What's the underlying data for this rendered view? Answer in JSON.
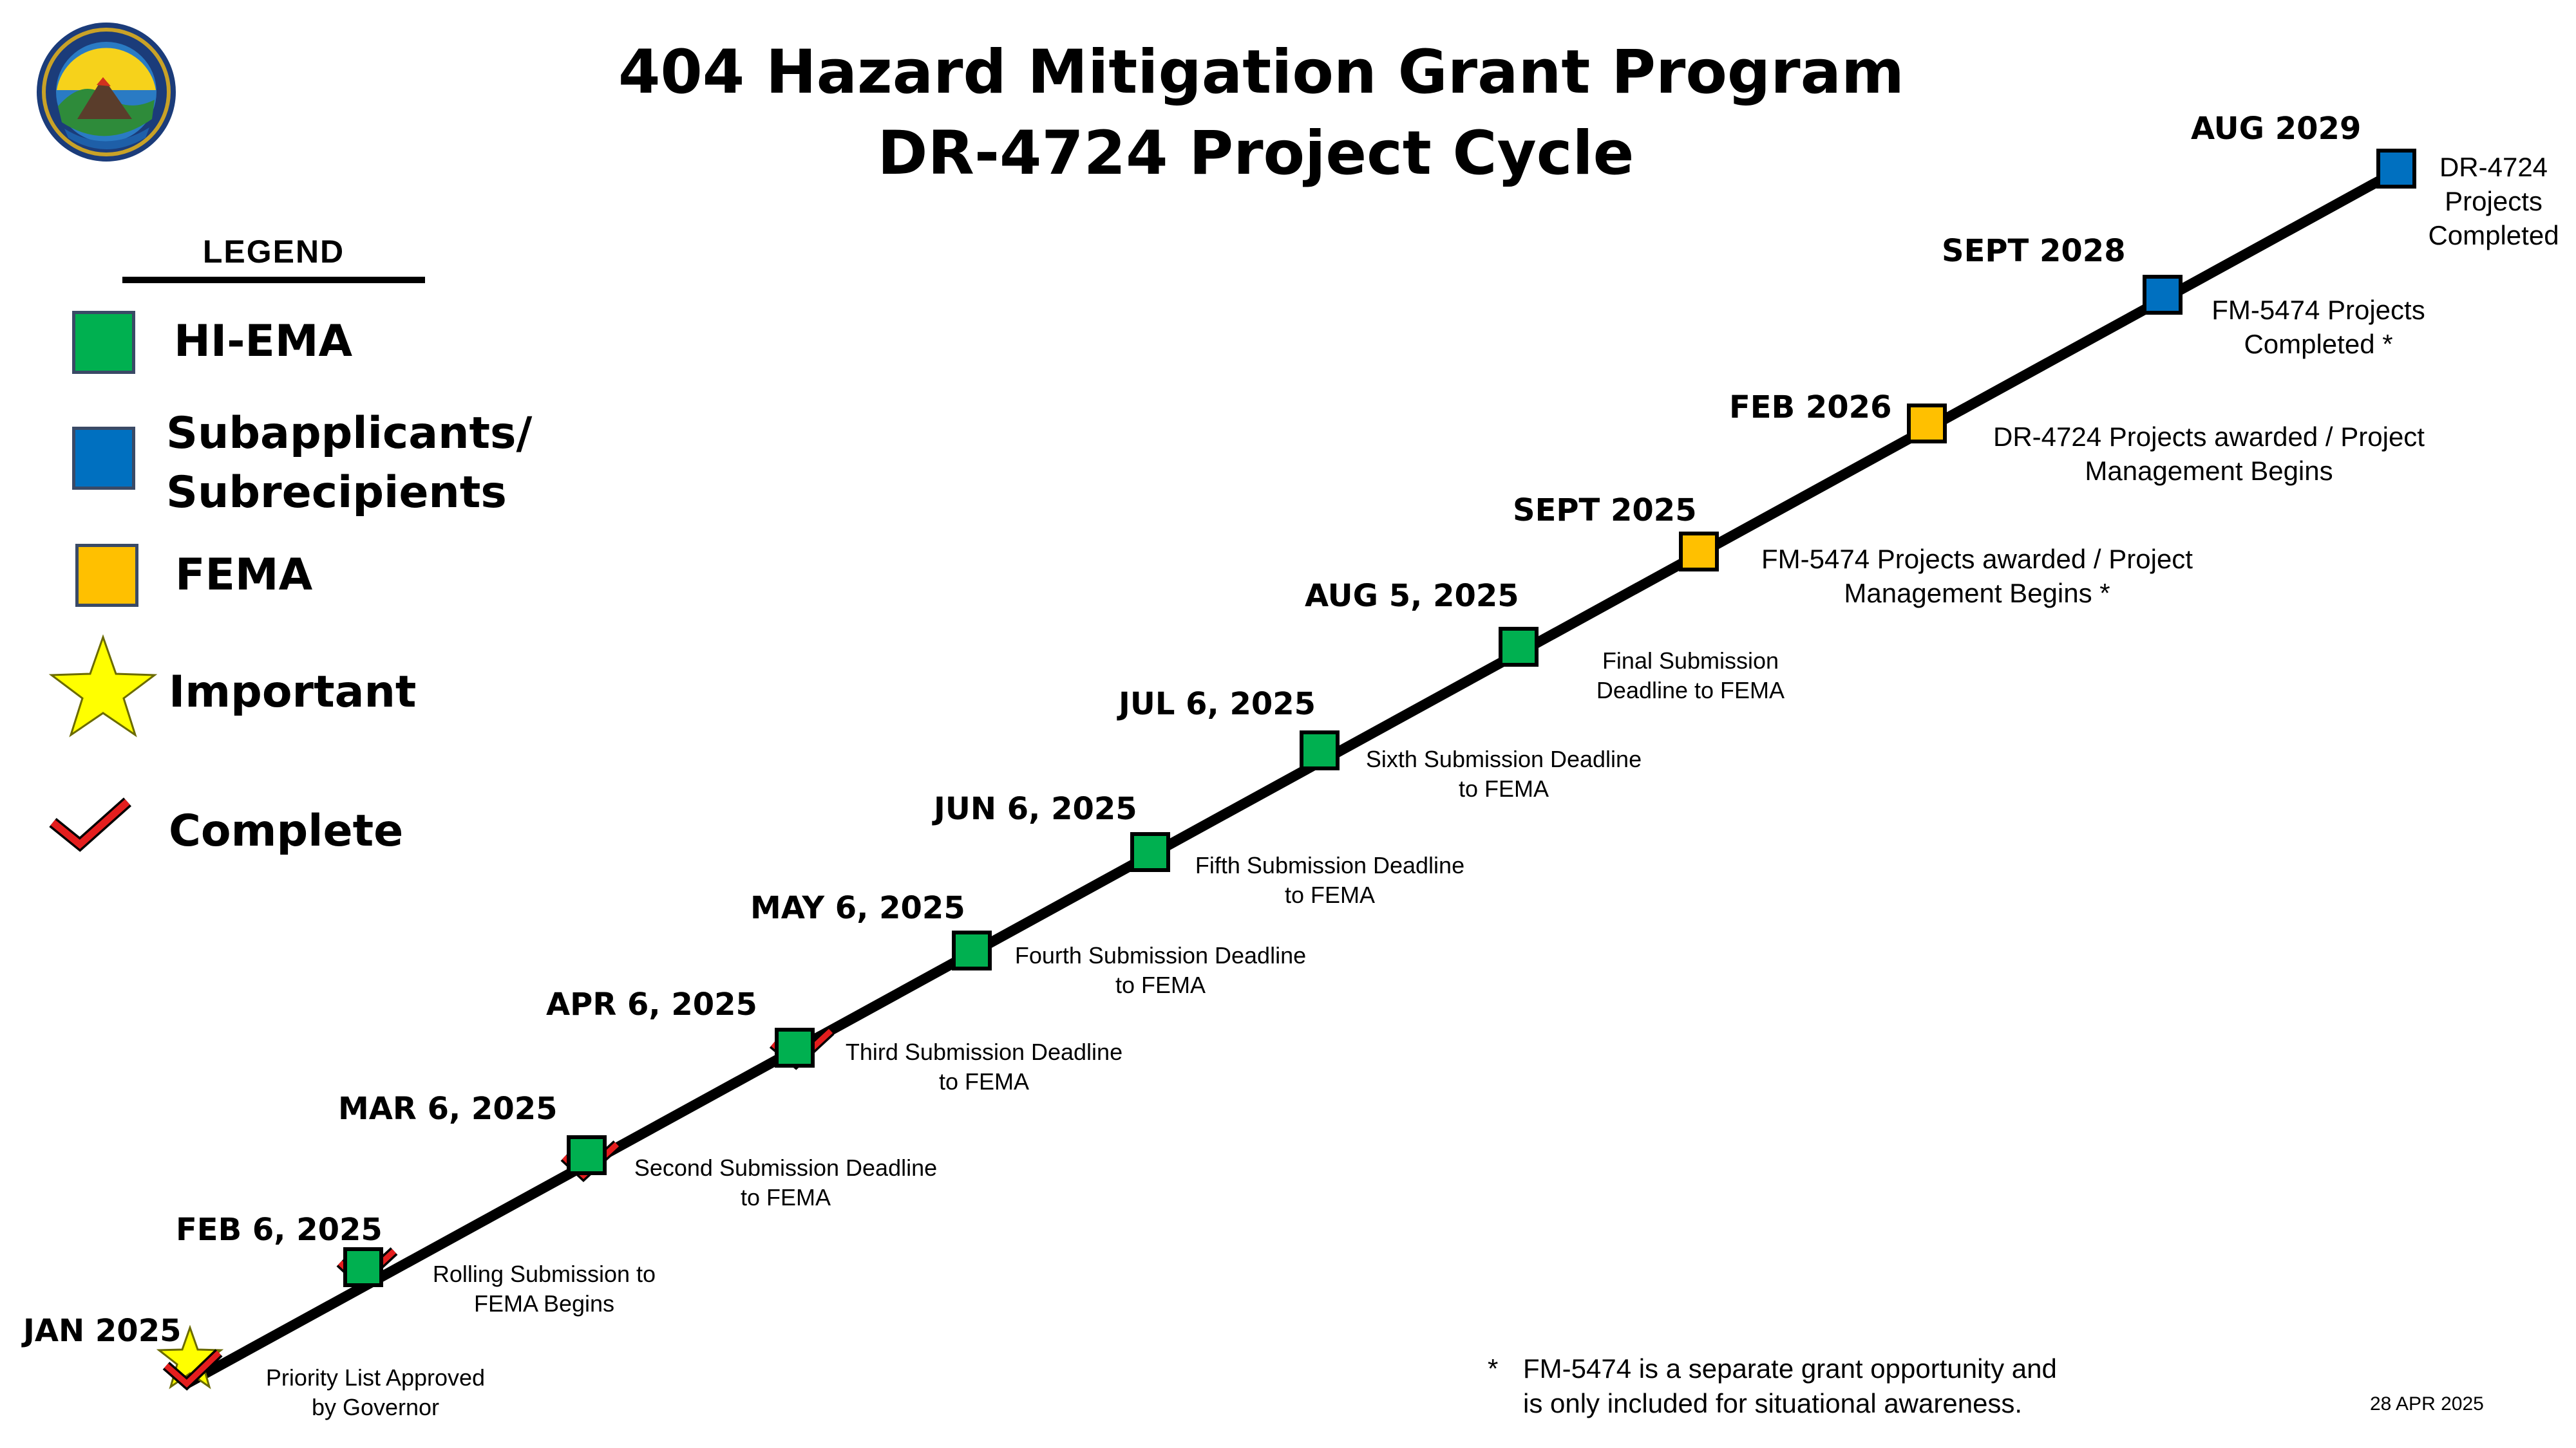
{
  "title": {
    "line1": "404 Hazard Mitigation Grant Program",
    "line2": "DR-4724 Project Cycle"
  },
  "colors": {
    "hi_ema": "#00b050",
    "subapplicants": "#0070c0",
    "fema": "#ffc000",
    "important": "#ffff00",
    "complete": "#e41e1e",
    "line": "#000000"
  },
  "legend": {
    "heading": "LEGEND",
    "hi_ema": "HI-EMA",
    "subapplicants_line1": "Subapplicants/",
    "subapplicants_line2": "Subrecipients",
    "fema": "FEMA",
    "important": "Important",
    "complete": "Complete"
  },
  "milestones": [
    {
      "date": "JAN 2025",
      "desc1": "Priority List Approved",
      "desc2": "by Governor",
      "marker": "star",
      "complete": true
    },
    {
      "date": "FEB 6, 2025",
      "desc1": "Rolling Submission to",
      "desc2": "FEMA Begins",
      "owner": "hi_ema",
      "complete": true
    },
    {
      "date": "MAR 6, 2025",
      "desc1": "Second Submission Deadline",
      "desc2": "to FEMA",
      "owner": "hi_ema",
      "complete": true
    },
    {
      "date": "APR 6, 2025",
      "desc1": "Third Submission Deadline",
      "desc2": "to FEMA",
      "owner": "hi_ema",
      "complete": true
    },
    {
      "date": "MAY 6, 2025",
      "desc1": "Fourth Submission Deadline",
      "desc2": "to FEMA",
      "owner": "hi_ema",
      "complete": false
    },
    {
      "date": "JUN 6, 2025",
      "desc1": "Fifth Submission Deadline",
      "desc2": "to FEMA",
      "owner": "hi_ema",
      "complete": false
    },
    {
      "date": "JUL 6, 2025",
      "desc1": "Sixth Submission Deadline",
      "desc2": "to FEMA",
      "owner": "hi_ema",
      "complete": false
    },
    {
      "date": "AUG 5, 2025",
      "desc1": "Final Submission",
      "desc2": "Deadline to FEMA",
      "owner": "hi_ema",
      "complete": false
    },
    {
      "date": "SEPT 2025",
      "desc1": "FM-5474 Projects awarded / Project",
      "desc2": "Management Begins *",
      "owner": "fema",
      "complete": false
    },
    {
      "date": "FEB 2026",
      "desc1": "DR-4724 Projects awarded / Project",
      "desc2": "Management Begins",
      "owner": "fema",
      "complete": false
    },
    {
      "date": "SEPT 2028",
      "desc1": "FM-5474 Projects",
      "desc2": "Completed *",
      "owner": "subapplicants",
      "complete": false
    },
    {
      "date": "AUG 2029",
      "desc1": "DR-4724",
      "desc2": "Projects",
      "desc3": "Completed",
      "owner": "subapplicants",
      "complete": false
    }
  ],
  "footnote": {
    "mark": "*",
    "line1": "FM-5474 is a separate grant opportunity and",
    "line2": "is only included for situational awareness."
  },
  "dateline": "28 APR 2025"
}
